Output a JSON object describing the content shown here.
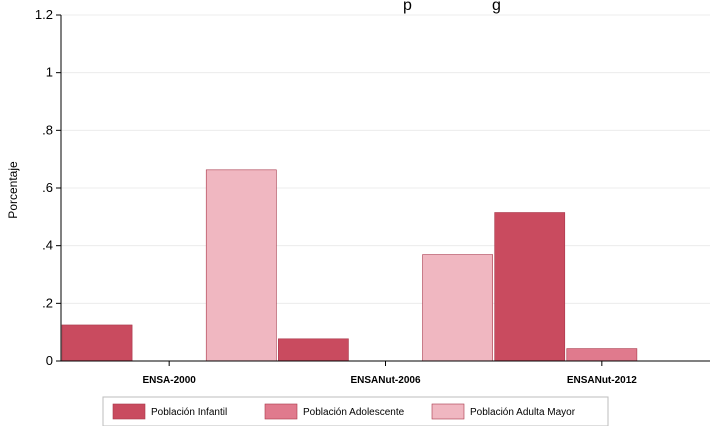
{
  "chart_data": {
    "type": "bar",
    "title_visible_fragment": "p",
    "title_visible_fragment_2": "g",
    "ylabel": "Porcentaje",
    "xlabel": "",
    "ylim": [
      0,
      1.2
    ],
    "yticks": [
      0,
      0.2,
      0.4,
      0.6,
      0.8,
      1,
      1.2
    ],
    "ytick_labels": [
      "0",
      ".2",
      ".4",
      ".6",
      ".8",
      "1",
      "1.2"
    ],
    "grid": true,
    "legend_position": "bottom",
    "categories": [
      "ENSA-2000",
      "ENSANut-2006",
      "ENSANut-2012"
    ],
    "series": [
      {
        "name": "Población Infantil",
        "color": "#c94b5f",
        "values": [
          0.125,
          0.077,
          0.515
        ]
      },
      {
        "name": "Población Adolescente",
        "color": "#e07a8d",
        "values": [
          0,
          0,
          0.043
        ]
      },
      {
        "name": "Población Adulta Mayor",
        "color": "#f0b7c1",
        "values": [
          0.663,
          0.369,
          0
        ]
      }
    ]
  }
}
